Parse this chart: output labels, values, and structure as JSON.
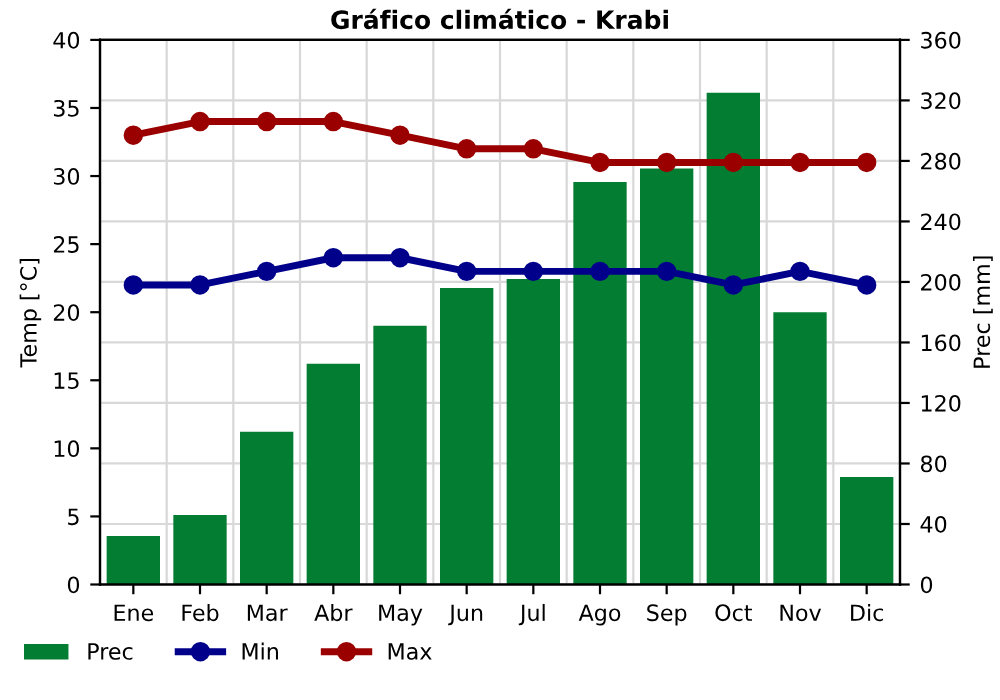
{
  "chart_data": {
    "type": "bar",
    "title": "Gráfico climático - Krabi",
    "categories": [
      "Ene",
      "Feb",
      "Mar",
      "Abr",
      "May",
      "Jun",
      "Jul",
      "Ago",
      "Sep",
      "Oct",
      "Nov",
      "Dic"
    ],
    "series": [
      {
        "name": "Prec",
        "axis": "y2",
        "color": "#027d32",
        "values": [
          32,
          46,
          101,
          146,
          171,
          196,
          202,
          266,
          275,
          325,
          180,
          71
        ]
      },
      {
        "name": "Min",
        "type": "line",
        "color": "#00008b",
        "values": [
          22,
          22,
          23,
          24,
          24,
          23,
          23,
          23,
          23,
          22,
          23,
          22
        ]
      },
      {
        "name": "Max",
        "type": "line",
        "color": "#9b0000",
        "values": [
          33,
          34,
          34,
          34,
          33,
          32,
          32,
          31,
          31,
          31,
          31,
          31
        ]
      }
    ],
    "ylabel": "Temp [°C]",
    "y2label": "Prec [mm]",
    "ylim": [
      0,
      40
    ],
    "yticks": [
      0,
      5,
      10,
      15,
      20,
      25,
      30,
      35,
      40
    ],
    "y2lim": [
      0,
      360
    ],
    "y2ticks": [
      0,
      40,
      80,
      120,
      160,
      200,
      240,
      280,
      320,
      360
    ],
    "grid": true,
    "legend": "bottom",
    "marker": "circle",
    "line_style": "solid"
  }
}
